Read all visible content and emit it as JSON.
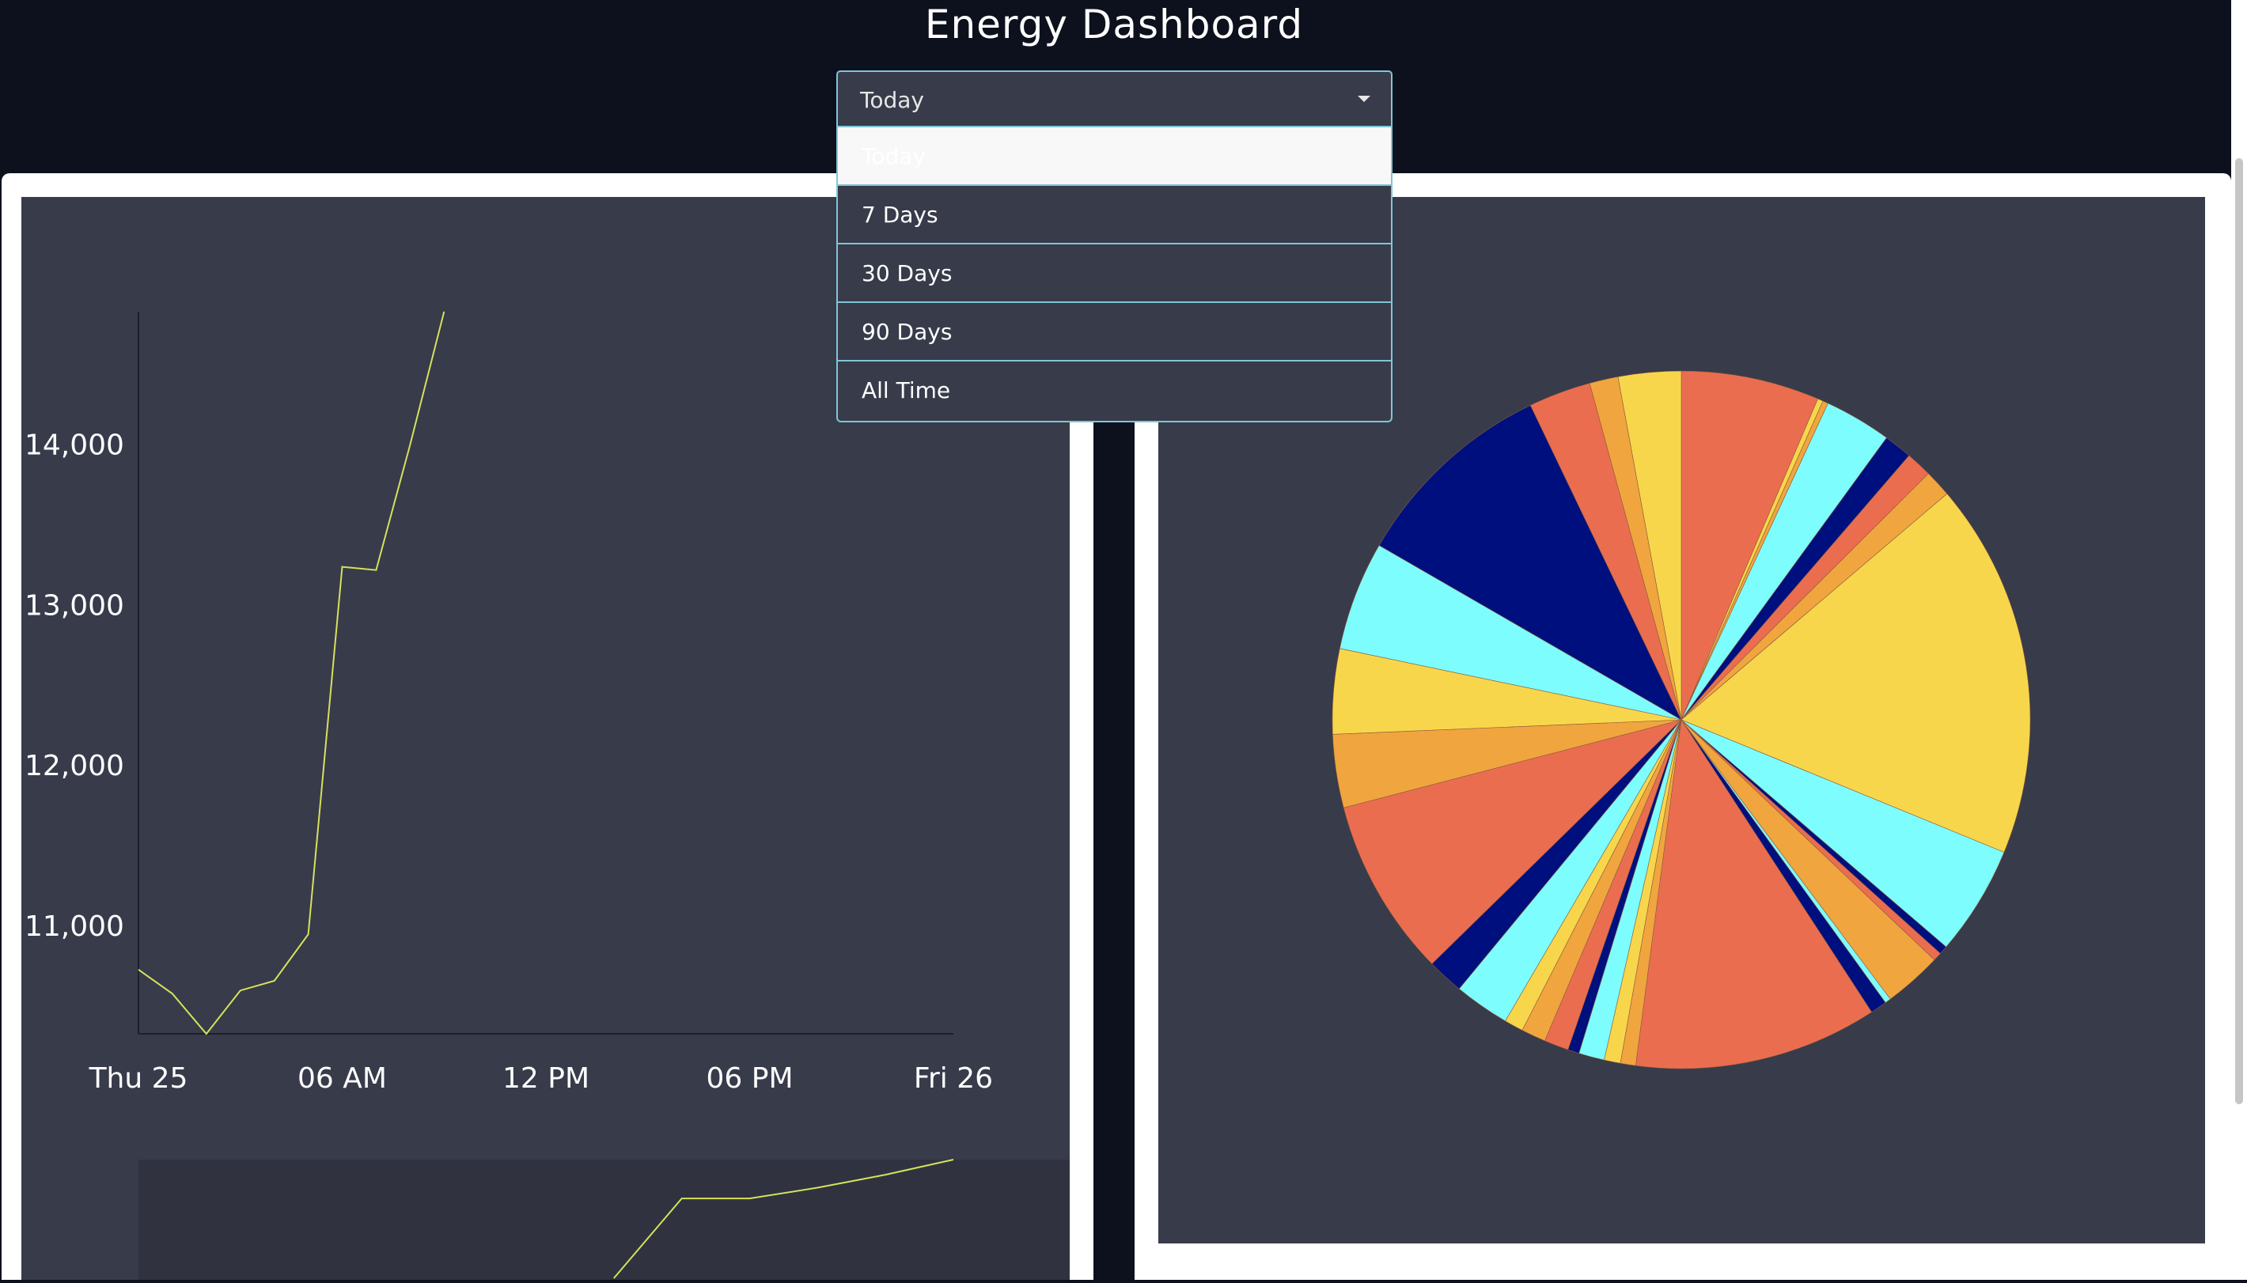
{
  "header": {
    "title": "Energy Dashboard"
  },
  "range_selector": {
    "value": "Today",
    "options": [
      "Today",
      "7 Days",
      "30 Days",
      "90 Days",
      "All Time"
    ],
    "selected_index": 0
  },
  "colors": {
    "header_bg": "#0d111d",
    "panel_bg": "#383b4a",
    "line": "#d4e25b",
    "pie_palette": [
      "#eb6d50",
      "#f8d64c",
      "#f0a53f",
      "#7dfdfe",
      "#000f7e"
    ]
  },
  "chart_data": [
    {
      "type": "line",
      "title": "",
      "xlabel": "",
      "ylabel": "",
      "x_ticks": [
        "Thu 25",
        "06 AM",
        "12 PM",
        "06 PM",
        "Fri 26"
      ],
      "x_range_hours": [
        0,
        24
      ],
      "y_ticks": [
        "11,000",
        "12,000",
        "13,000",
        "14,000"
      ],
      "y_tick_values": [
        11000,
        12000,
        13000,
        14000
      ],
      "ylim": [
        10330,
        14830
      ],
      "grid": false,
      "series": [
        {
          "x_hours": [
            0,
            1,
            2,
            3,
            4,
            5,
            6,
            7,
            8,
            9
          ],
          "values": [
            10730,
            10580,
            10330,
            10600,
            10660,
            10950,
            13240,
            13220,
            14000,
            14830
          ]
        }
      ],
      "navigator": {
        "x_hours": [
          14,
          16,
          18,
          20,
          22,
          24
        ],
        "values": [
          10280,
          10650,
          10650,
          10700,
          10760,
          10830
        ]
      }
    },
    {
      "type": "pie",
      "title": "",
      "start_angle_deg": 0,
      "slices": [
        {
          "value": 7.05,
          "color": "#eb6d50"
        },
        {
          "value": 0.28,
          "color": "#f8d64c"
        },
        {
          "value": 0.28,
          "color": "#f0a53f"
        },
        {
          "value": 3.42,
          "color": "#7dfdfe"
        },
        {
          "value": 1.44,
          "color": "#000f7e"
        },
        {
          "value": 1.33,
          "color": "#eb6d50"
        },
        {
          "value": 1.38,
          "color": "#f0a53f"
        },
        {
          "value": 19.19,
          "color": "#f8d64c"
        },
        {
          "value": 5.6,
          "color": "#7dfdfe"
        },
        {
          "value": 0.44,
          "color": "#000f7e"
        },
        {
          "value": 0.44,
          "color": "#eb6d50"
        },
        {
          "value": 2.97,
          "color": "#f0a53f"
        },
        {
          "value": 0.3,
          "color": "#7dfdfe"
        },
        {
          "value": 0.84,
          "color": "#000f7e"
        },
        {
          "value": 12.42,
          "color": "#eb6d50"
        },
        {
          "value": 0.78,
          "color": "#f0a53f"
        },
        {
          "value": 0.83,
          "color": "#f8d64c"
        },
        {
          "value": 1.31,
          "color": "#7dfdfe"
        },
        {
          "value": 0.58,
          "color": "#000f7e"
        },
        {
          "value": 1.25,
          "color": "#eb6d50"
        },
        {
          "value": 1.25,
          "color": "#f0a53f"
        },
        {
          "value": 0.97,
          "color": "#f8d64c"
        },
        {
          "value": 2.83,
          "color": "#7dfdfe"
        },
        {
          "value": 1.86,
          "color": "#000f7e"
        },
        {
          "value": 9.11,
          "color": "#eb6d50"
        },
        {
          "value": 3.74,
          "color": "#f0a53f"
        },
        {
          "value": 4.34,
          "color": "#f8d64c"
        },
        {
          "value": 5.57,
          "color": "#7dfdfe"
        },
        {
          "value": 10.52,
          "color": "#000f7e"
        },
        {
          "value": 3.18,
          "color": "#eb6d50"
        },
        {
          "value": 1.46,
          "color": "#f0a53f"
        },
        {
          "value": 3.2,
          "color": "#f8d64c"
        }
      ]
    }
  ]
}
